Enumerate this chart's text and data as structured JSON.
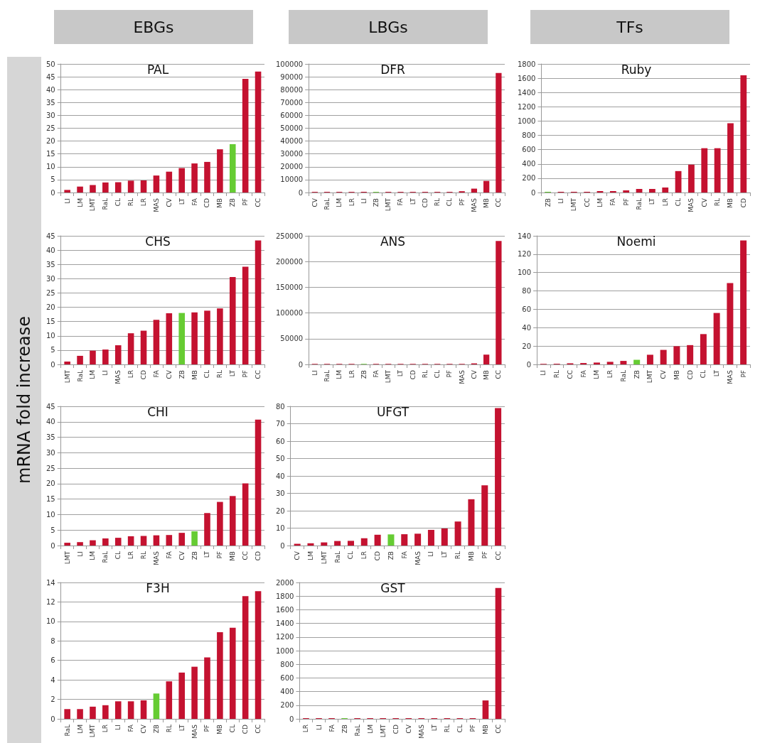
{
  "chart_data": [
    {
      "type": "other",
      "annotations": [
        "EBGs",
        "LBGs",
        "TFs"
      ],
      "ylabel": "mRNA fold increase"
    },
    {
      "type": "bar",
      "title": "PAL",
      "categories": [
        "LI",
        "LM",
        "LMT",
        "RaL",
        "CL",
        "RL",
        "LR",
        "MAS",
        "CV",
        "LT",
        "FA",
        "CD",
        "MB",
        "ZB",
        "PF",
        "CC"
      ],
      "values": [
        1,
        2.3,
        2.9,
        3.9,
        4,
        4.6,
        4.7,
        6.6,
        8.1,
        9.5,
        11.3,
        11.9,
        16.8,
        18.8,
        44.2,
        47
      ],
      "colors": [
        "#c41230",
        "#c41230",
        "#c41230",
        "#c41230",
        "#c41230",
        "#c41230",
        "#c41230",
        "#c41230",
        "#c41230",
        "#c41230",
        "#c41230",
        "#c41230",
        "#c41230",
        "#66cc33",
        "#c41230",
        "#c41230"
      ],
      "ylim": [
        0,
        50
      ],
      "yticks": [
        0,
        5,
        10,
        15,
        20,
        25,
        30,
        35,
        40,
        45,
        50
      ],
      "grid": "y"
    },
    {
      "type": "bar",
      "title": "DFR",
      "categories": [
        "CV",
        "RaL",
        "LM",
        "LR",
        "LI",
        "ZB",
        "LMT",
        "FA",
        "LT",
        "CD",
        "RL",
        "CL",
        "PF",
        "MAS",
        "MB",
        "CC"
      ],
      "values": [
        500,
        500,
        500,
        500,
        500,
        500,
        500,
        500,
        500,
        500,
        500,
        500,
        1000,
        3000,
        9000,
        93000
      ],
      "colors": [
        "#c41230",
        "#c41230",
        "#c41230",
        "#c41230",
        "#c41230",
        "#66cc33",
        "#c41230",
        "#c41230",
        "#c41230",
        "#c41230",
        "#c41230",
        "#c41230",
        "#c41230",
        "#c41230",
        "#c41230",
        "#c41230"
      ],
      "ylim": [
        0,
        100000
      ],
      "yticks": [
        0,
        10000,
        20000,
        30000,
        40000,
        50000,
        60000,
        70000,
        80000,
        90000,
        100000
      ],
      "grid": "y"
    },
    {
      "type": "bar",
      "title": "Ruby",
      "categories": [
        "ZB",
        "LI",
        "LMT",
        "CC",
        "LM",
        "FA",
        "PF",
        "RaL",
        "LT",
        "LR",
        "CL",
        "MAS",
        "CV",
        "RL",
        "MB",
        "CD"
      ],
      "values": [
        10,
        10,
        10,
        10,
        20,
        20,
        30,
        50,
        50,
        70,
        300,
        390,
        620,
        620,
        970,
        1640
      ],
      "colors": [
        "#66cc33",
        "#c41230",
        "#c41230",
        "#c41230",
        "#c41230",
        "#c41230",
        "#c41230",
        "#c41230",
        "#c41230",
        "#c41230",
        "#c41230",
        "#c41230",
        "#c41230",
        "#c41230",
        "#c41230",
        "#c41230"
      ],
      "ylim": [
        0,
        1800
      ],
      "yticks": [
        0,
        200,
        400,
        600,
        800,
        1000,
        1200,
        1400,
        1600,
        1800
      ],
      "grid": "y"
    },
    {
      "type": "bar",
      "title": "CHS",
      "categories": [
        "LMT",
        "RaL",
        "LM",
        "LI",
        "MAS",
        "LR",
        "CD",
        "FA",
        "CV",
        "ZB",
        "MB",
        "CL",
        "RL",
        "LT",
        "PF",
        "CC"
      ],
      "values": [
        1,
        3,
        4.8,
        5.2,
        6.7,
        10.9,
        11.8,
        15.6,
        17.9,
        18,
        18.2,
        18.8,
        19.6,
        30.6,
        34.2,
        43.4
      ],
      "colors": [
        "#c41230",
        "#c41230",
        "#c41230",
        "#c41230",
        "#c41230",
        "#c41230",
        "#c41230",
        "#c41230",
        "#c41230",
        "#66cc33",
        "#c41230",
        "#c41230",
        "#c41230",
        "#c41230",
        "#c41230",
        "#c41230"
      ],
      "ylim": [
        0,
        45
      ],
      "yticks": [
        0,
        5,
        10,
        15,
        20,
        25,
        30,
        35,
        40,
        45
      ],
      "grid": "y"
    },
    {
      "type": "bar",
      "title": "ANS",
      "categories": [
        "LI",
        "RaL",
        "LM",
        "LR",
        "ZB",
        "FA",
        "LMT",
        "LT",
        "CD",
        "RL",
        "CL",
        "PF",
        "MAS",
        "CV",
        "MB",
        "CC"
      ],
      "values": [
        1000,
        1000,
        1000,
        1000,
        1000,
        1000,
        1000,
        1000,
        1000,
        1000,
        1000,
        1000,
        1000,
        2000,
        19000,
        240000
      ],
      "colors": [
        "#c41230",
        "#c41230",
        "#c41230",
        "#c41230",
        "#66cc33",
        "#c41230",
        "#c41230",
        "#c41230",
        "#c41230",
        "#c41230",
        "#c41230",
        "#c41230",
        "#c41230",
        "#c41230",
        "#c41230",
        "#c41230"
      ],
      "ylim": [
        0,
        250000
      ],
      "yticks": [
        0,
        50000,
        100000,
        150000,
        200000,
        250000
      ],
      "grid": "y"
    },
    {
      "type": "bar",
      "title": "Noemi",
      "categories": [
        "LI",
        "RL",
        "CC",
        "FA",
        "LM",
        "LR",
        "RaL",
        "ZB",
        "LMT",
        "CV",
        "MB",
        "CD",
        "CL",
        "LT",
        "MAS",
        "PF"
      ],
      "values": [
        0.5,
        0.7,
        1.2,
        1.5,
        2,
        2.8,
        3.8,
        5,
        10.5,
        15.8,
        19.8,
        21,
        33,
        56,
        88.5,
        135
      ],
      "colors": [
        "#c41230",
        "#c41230",
        "#c41230",
        "#c41230",
        "#c41230",
        "#c41230",
        "#c41230",
        "#66cc33",
        "#c41230",
        "#c41230",
        "#c41230",
        "#c41230",
        "#c41230",
        "#c41230",
        "#c41230",
        "#c41230"
      ],
      "ylim": [
        0,
        140
      ],
      "yticks": [
        0,
        20,
        40,
        60,
        80,
        100,
        120,
        140
      ],
      "grid": "y"
    },
    {
      "type": "bar",
      "title": "CHI",
      "categories": [
        "LMT",
        "LI",
        "LM",
        "RaL",
        "CL",
        "LR",
        "RL",
        "MAS",
        "FA",
        "CV",
        "ZB",
        "LT",
        "PF",
        "MB",
        "CC",
        "CD"
      ],
      "values": [
        0.9,
        1.1,
        1.7,
        2.3,
        2.5,
        3,
        3.1,
        3.3,
        3.4,
        4.1,
        4.6,
        10.5,
        14.1,
        16,
        20.1,
        40.7
      ],
      "colors": [
        "#c41230",
        "#c41230",
        "#c41230",
        "#c41230",
        "#c41230",
        "#c41230",
        "#c41230",
        "#c41230",
        "#c41230",
        "#c41230",
        "#66cc33",
        "#c41230",
        "#c41230",
        "#c41230",
        "#c41230",
        "#c41230"
      ],
      "ylim": [
        0,
        45
      ],
      "yticks": [
        0,
        5,
        10,
        15,
        20,
        25,
        30,
        35,
        40,
        45
      ],
      "grid": "y"
    },
    {
      "type": "bar",
      "title": "UFGT",
      "categories": [
        "CV",
        "LM",
        "LMT",
        "RaL",
        "CL",
        "LR",
        "CD",
        "ZB",
        "FA",
        "MAS",
        "LI",
        "LT",
        "RL",
        "MB",
        "PF",
        "CC"
      ],
      "values": [
        1,
        1.3,
        1.8,
        2.6,
        2.7,
        4.2,
        6.2,
        6.4,
        6.5,
        6.8,
        9,
        9.8,
        13.8,
        26.6,
        34.6,
        79
      ],
      "colors": [
        "#c41230",
        "#c41230",
        "#c41230",
        "#c41230",
        "#c41230",
        "#c41230",
        "#c41230",
        "#66cc33",
        "#c41230",
        "#c41230",
        "#c41230",
        "#c41230",
        "#c41230",
        "#c41230",
        "#c41230",
        "#c41230"
      ],
      "ylim": [
        0,
        80
      ],
      "yticks": [
        0,
        10,
        20,
        30,
        40,
        50,
        60,
        70,
        80
      ],
      "grid": "y"
    },
    {
      "type": "bar",
      "title": "F3H",
      "categories": [
        "RaL",
        "LM",
        "LMT",
        "LR",
        "LI",
        "FA",
        "CV",
        "ZB",
        "RL",
        "LT",
        "MAS",
        "PF",
        "MB",
        "CL",
        "CD",
        "CC"
      ],
      "values": [
        1,
        1,
        1.25,
        1.4,
        1.8,
        1.8,
        1.9,
        2.6,
        3.85,
        4.75,
        5.35,
        6.3,
        8.9,
        9.35,
        12.6,
        13.1
      ],
      "colors": [
        "#c41230",
        "#c41230",
        "#c41230",
        "#c41230",
        "#c41230",
        "#c41230",
        "#c41230",
        "#66cc33",
        "#c41230",
        "#c41230",
        "#c41230",
        "#c41230",
        "#c41230",
        "#c41230",
        "#c41230",
        "#c41230"
      ],
      "ylim": [
        0,
        14
      ],
      "yticks": [
        0,
        2,
        4,
        6,
        8,
        10,
        12,
        14
      ],
      "grid": "y"
    },
    {
      "type": "bar",
      "title": "GST",
      "categories": [
        "LR",
        "LI",
        "FA",
        "ZB",
        "RaL",
        "LM",
        "LMT",
        "CD",
        "CV",
        "MAS",
        "LT",
        "RL",
        "CL",
        "PF",
        "MB",
        "CC"
      ],
      "values": [
        10,
        10,
        10,
        10,
        10,
        10,
        10,
        10,
        10,
        10,
        10,
        10,
        10,
        10,
        270,
        1920
      ],
      "colors": [
        "#c41230",
        "#c41230",
        "#c41230",
        "#66cc33",
        "#c41230",
        "#c41230",
        "#c41230",
        "#c41230",
        "#c41230",
        "#c41230",
        "#c41230",
        "#c41230",
        "#c41230",
        "#c41230",
        "#c41230",
        "#c41230"
      ],
      "ylim": [
        0,
        2000
      ],
      "yticks": [
        0,
        200,
        400,
        600,
        800,
        1000,
        1200,
        1400,
        1600,
        1800,
        2000
      ],
      "grid": "y"
    }
  ]
}
